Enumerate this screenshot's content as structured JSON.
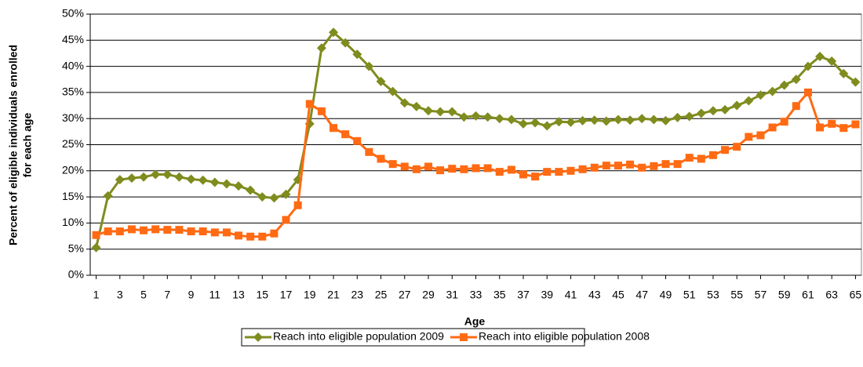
{
  "chart_data": {
    "type": "line",
    "x_label": "Age",
    "y_label": [
      "Percent of eligible individuals enrolled",
      "for each age"
    ],
    "x": [
      1,
      2,
      3,
      4,
      5,
      6,
      7,
      8,
      9,
      10,
      11,
      12,
      13,
      14,
      15,
      16,
      17,
      18,
      19,
      20,
      21,
      22,
      23,
      24,
      25,
      26,
      27,
      28,
      29,
      30,
      31,
      32,
      33,
      34,
      35,
      36,
      37,
      38,
      39,
      40,
      41,
      42,
      43,
      44,
      45,
      46,
      47,
      48,
      49,
      50,
      51,
      52,
      53,
      54,
      55,
      56,
      57,
      58,
      59,
      60,
      61,
      62,
      63,
      64,
      65
    ],
    "xlim": [
      0.5,
      65.5
    ],
    "xticks": [
      1,
      3,
      5,
      7,
      9,
      11,
      13,
      15,
      17,
      19,
      21,
      23,
      25,
      27,
      29,
      31,
      33,
      35,
      37,
      39,
      41,
      43,
      45,
      47,
      49,
      51,
      53,
      55,
      57,
      59,
      61,
      63,
      65
    ],
    "ylim": [
      0,
      50
    ],
    "yticks": [
      {
        "value": 0,
        "label": "0%"
      },
      {
        "value": 5,
        "label": "5%"
      },
      {
        "value": 10,
        "label": "10%"
      },
      {
        "value": 15,
        "label": "15%"
      },
      {
        "value": 20,
        "label": "20%"
      },
      {
        "value": 25,
        "label": "25%"
      },
      {
        "value": 30,
        "label": "30%"
      },
      {
        "value": 35,
        "label": "35%"
      },
      {
        "value": 40,
        "label": "40%"
      },
      {
        "value": 45,
        "label": "45%"
      },
      {
        "value": 50,
        "label": "50%"
      }
    ],
    "grid": true,
    "legend": "bottom",
    "series": [
      {
        "name": "Reach into eligible population 2009",
        "color": "#7f8c1e",
        "marker": "diamond",
        "values": [
          5.3,
          15.2,
          18.3,
          18.6,
          18.8,
          19.3,
          19.3,
          18.8,
          18.4,
          18.2,
          17.8,
          17.5,
          17.1,
          16.3,
          15.0,
          14.8,
          15.5,
          18.3,
          29.0,
          43.5,
          46.5,
          44.5,
          42.3,
          40.0,
          37.1,
          35.2,
          33.0,
          32.3,
          31.5,
          31.3,
          31.3,
          30.3,
          30.5,
          30.3,
          30.0,
          29.8,
          29.0,
          29.2,
          28.6,
          29.4,
          29.3,
          29.6,
          29.7,
          29.5,
          29.8,
          29.7,
          30.0,
          29.8,
          29.6,
          30.2,
          30.4,
          31.0,
          31.5,
          31.7,
          32.5,
          33.4,
          34.5,
          35.2,
          36.4,
          37.5,
          40.0,
          41.9,
          41.0,
          38.6,
          37.0
        ]
      },
      {
        "name": "Reach into eligible population 2008",
        "color": "#ff6a13",
        "marker": "square",
        "values": [
          7.7,
          8.4,
          8.4,
          8.8,
          8.6,
          8.8,
          8.7,
          8.7,
          8.4,
          8.4,
          8.2,
          8.2,
          7.6,
          7.4,
          7.4,
          8.0,
          10.6,
          13.4,
          32.8,
          31.4,
          28.2,
          27.0,
          25.7,
          23.6,
          22.3,
          21.3,
          20.8,
          20.3,
          20.8,
          20.1,
          20.4,
          20.3,
          20.5,
          20.5,
          19.8,
          20.2,
          19.3,
          18.9,
          19.8,
          19.8,
          20.0,
          20.3,
          20.6,
          21.0,
          21.0,
          21.2,
          20.6,
          20.9,
          21.3,
          21.3,
          22.5,
          22.3,
          23.0,
          24.0,
          24.6,
          26.5,
          26.8,
          28.3,
          29.4,
          32.4,
          35.0,
          28.3,
          29.0,
          28.2,
          28.9
        ]
      }
    ]
  }
}
